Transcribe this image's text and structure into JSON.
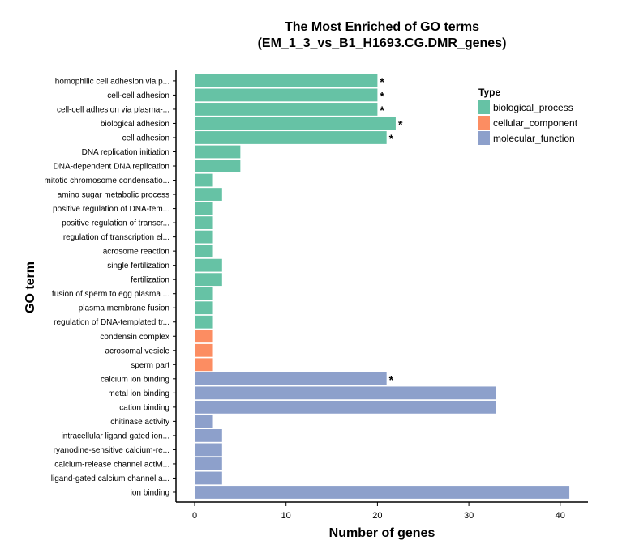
{
  "chart_data": {
    "type": "bar",
    "orientation": "horizontal",
    "title": "The Most Enriched of GO terms",
    "subtitle": "(EM_1_3_vs_B1_H1693.CG.DMR_genes)",
    "xlabel": "Number of genes",
    "ylabel": "GO term",
    "xlim": [
      0,
      42
    ],
    "xticks": [
      0,
      10,
      20,
      30,
      40
    ],
    "grid": false,
    "legend": {
      "title": "Type",
      "position": "top-right",
      "entries": [
        {
          "name": "biological_process",
          "color": "#66c2a5"
        },
        {
          "name": "cellular_component",
          "color": "#fc8d62"
        },
        {
          "name": "molecular_function",
          "color": "#8da0cb"
        }
      ]
    },
    "categories": [
      "homophilic cell adhesion via p...",
      "cell-cell adhesion",
      "cell-cell adhesion via plasma-...",
      "biological adhesion",
      "cell adhesion",
      "DNA replication initiation",
      "DNA-dependent DNA replication",
      "mitotic chromosome condensatio...",
      "amino sugar metabolic process",
      "positive regulation of DNA-tem...",
      "positive regulation of transcr...",
      "regulation of transcription el...",
      "acrosome reaction",
      "single fertilization",
      "fertilization",
      "fusion of sperm to egg plasma ...",
      "plasma membrane fusion",
      "regulation of DNA-templated tr...",
      "condensin complex",
      "acrosomal vesicle",
      "sperm part",
      "calcium ion binding",
      "metal ion binding",
      "cation binding",
      "chitinase activity",
      "intracellular ligand-gated ion...",
      "ryanodine-sensitive calcium-re...",
      "calcium-release channel activi...",
      "ligand-gated calcium channel a...",
      "ion binding"
    ],
    "values": [
      20,
      20,
      20,
      22,
      21,
      5,
      5,
      2,
      3,
      2,
      2,
      2,
      2,
      3,
      3,
      2,
      2,
      2,
      2,
      2,
      2,
      21,
      33,
      33,
      2,
      3,
      3,
      3,
      3,
      41
    ],
    "types": [
      "biological_process",
      "biological_process",
      "biological_process",
      "biological_process",
      "biological_process",
      "biological_process",
      "biological_process",
      "biological_process",
      "biological_process",
      "biological_process",
      "biological_process",
      "biological_process",
      "biological_process",
      "biological_process",
      "biological_process",
      "biological_process",
      "biological_process",
      "biological_process",
      "cellular_component",
      "cellular_component",
      "cellular_component",
      "molecular_function",
      "molecular_function",
      "molecular_function",
      "molecular_function",
      "molecular_function",
      "molecular_function",
      "molecular_function",
      "molecular_function",
      "molecular_function"
    ],
    "significance_marker": "*",
    "significant": [
      true,
      true,
      true,
      true,
      true,
      false,
      false,
      false,
      false,
      false,
      false,
      false,
      false,
      false,
      false,
      false,
      false,
      false,
      false,
      false,
      false,
      true,
      false,
      false,
      false,
      false,
      false,
      false,
      false,
      false
    ]
  }
}
